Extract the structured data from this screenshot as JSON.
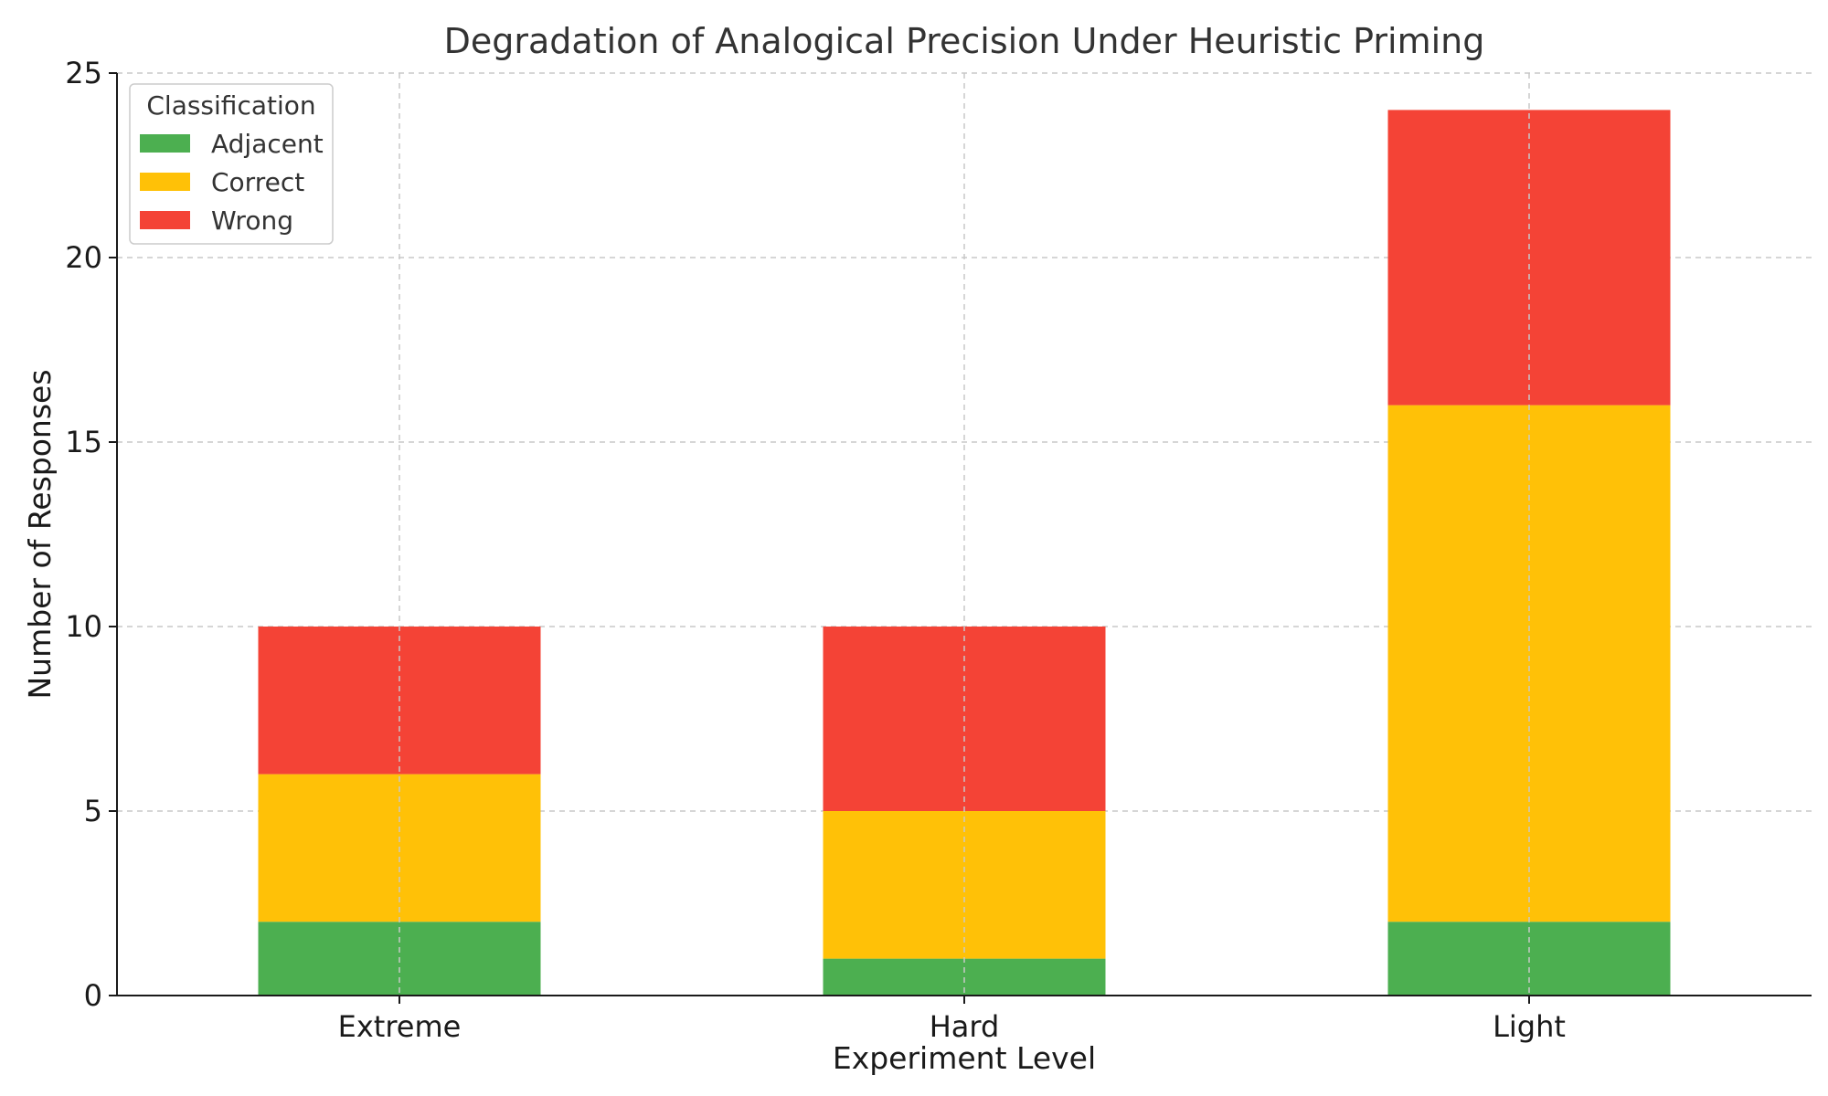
{
  "chart_data": {
    "type": "bar",
    "stacked": true,
    "title": "Degradation of Analogical Precision Under Heuristic Priming",
    "xlabel": "Experiment Level",
    "ylabel": "Number of Responses",
    "categories": [
      "Extreme",
      "Hard",
      "Light"
    ],
    "series": [
      {
        "name": "Adjacent",
        "values": [
          2,
          1,
          2
        ],
        "color": "#4caf50"
      },
      {
        "name": "Correct",
        "values": [
          4,
          4,
          14
        ],
        "color": "#ffc107"
      },
      {
        "name": "Wrong",
        "values": [
          4,
          5,
          8
        ],
        "color": "#f44336"
      }
    ],
    "ylim": [
      0,
      25
    ],
    "yticks": [
      0,
      5,
      10,
      15,
      20,
      25
    ],
    "grid": true,
    "legend": {
      "title": "Classification",
      "placement": "top-left"
    }
  }
}
